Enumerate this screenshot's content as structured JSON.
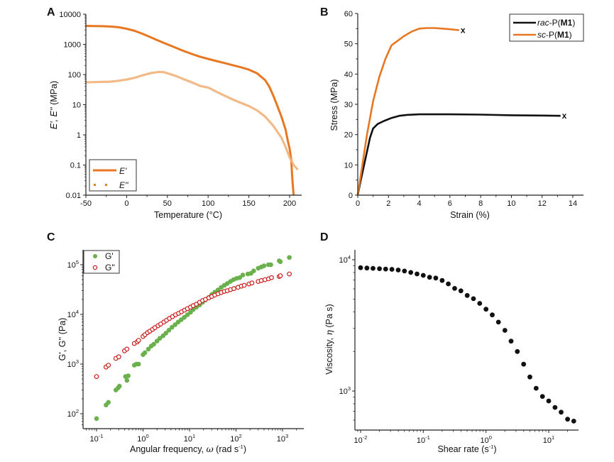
{
  "chart_data": [
    {
      "panel": "A",
      "type": "line",
      "xlabel": "Temperature (°C)",
      "ylabel": "E', E'' (MPa)",
      "xlim": [
        -50,
        215
      ],
      "ylim": [
        0.01,
        10000
      ],
      "yscale": "log",
      "xticks": [
        -50,
        0,
        50,
        100,
        150,
        200
      ],
      "xtick_labels": [
        "-50",
        "0",
        "50",
        "100",
        "150",
        "200"
      ],
      "yticks": [
        0.01,
        0.1,
        1,
        10,
        100,
        1000,
        10000
      ],
      "ytick_labels": [
        "0.01",
        "0.1",
        "1",
        "10",
        "100",
        "1000",
        "10000"
      ],
      "legend": "bottom-left",
      "series": [
        {
          "name": "E'",
          "color": "#e87722",
          "style": "solid",
          "x": [
            -50,
            -40,
            -30,
            -20,
            -10,
            0,
            10,
            20,
            30,
            40,
            50,
            60,
            70,
            80,
            90,
            100,
            110,
            120,
            130,
            140,
            150,
            160,
            170,
            175,
            180,
            185,
            190,
            195,
            198,
            200,
            202,
            203,
            204,
            205
          ],
          "y": [
            4100,
            4050,
            4000,
            3900,
            3700,
            3300,
            2800,
            2200,
            1700,
            1300,
            1000,
            780,
            600,
            480,
            390,
            330,
            280,
            240,
            205,
            175,
            145,
            110,
            65,
            40,
            20,
            9,
            4,
            1.5,
            0.6,
            0.35,
            0.15,
            0.05,
            0.02,
            0.01
          ]
        },
        {
          "name": "E''",
          "color": "#f2b27a",
          "style": "dotted",
          "x": [
            -50,
            -40,
            -30,
            -20,
            -10,
            0,
            10,
            20,
            30,
            40,
            45,
            50,
            60,
            70,
            80,
            90,
            100,
            102,
            110,
            120,
            130,
            140,
            150,
            160,
            170,
            180,
            190,
            195,
            200,
            205,
            210
          ],
          "y": [
            55,
            56,
            57,
            58,
            62,
            68,
            78,
            95,
            112,
            122,
            120,
            110,
            90,
            70,
            55,
            42,
            37,
            35,
            27,
            20,
            15,
            11.5,
            9,
            6.5,
            4,
            2,
            0.8,
            0.4,
            0.18,
            0.1,
            0.07
          ]
        }
      ]
    },
    {
      "panel": "B",
      "type": "line",
      "xlabel": "Strain (%)",
      "ylabel": "Stress (MPa)",
      "xlim": [
        0,
        15
      ],
      "ylim": [
        0,
        60
      ],
      "xticks": [
        0,
        2,
        4,
        6,
        8,
        10,
        12,
        14
      ],
      "xtick_labels": [
        "0",
        "2",
        "4",
        "6",
        "8",
        "10",
        "12",
        "14"
      ],
      "yticks": [
        0,
        10,
        20,
        30,
        40,
        50,
        60
      ],
      "ytick_labels": [
        "0",
        "10",
        "20",
        "30",
        "40",
        "50",
        "60"
      ],
      "legend": "top-right",
      "series": [
        {
          "name_prefix": "rac",
          "name_mid": "-P(",
          "name_bold": "M1",
          "name_suffix": ")",
          "color": "#111111",
          "x": [
            0,
            0.2,
            0.5,
            0.8,
            1.0,
            1.3,
            1.7,
            2.2,
            2.7,
            3.2,
            4.0,
            5.0,
            6.0,
            8.0,
            10.0,
            12.0,
            13.2
          ],
          "y": [
            0,
            5,
            12,
            19,
            22,
            23.5,
            24.5,
            25.5,
            26.2,
            26.5,
            26.7,
            26.7,
            26.7,
            26.6,
            26.4,
            26.3,
            26.2
          ],
          "break_marker": "x"
        },
        {
          "name_prefix": "sc",
          "name_mid": "-P(",
          "name_bold": "M1",
          "name_suffix": ")",
          "color": "#e87722",
          "x": [
            0,
            0.3,
            0.6,
            1.0,
            1.4,
            1.8,
            2.2,
            2.6,
            3.0,
            3.5,
            4.0,
            4.5,
            5.0,
            5.5,
            6.0,
            6.6
          ],
          "y": [
            0,
            10,
            20,
            31,
            39,
            45,
            49.5,
            51,
            52.5,
            54,
            55,
            55.2,
            55.2,
            55,
            54.8,
            54.5
          ],
          "break_marker": "x"
        }
      ]
    },
    {
      "panel": "C",
      "type": "scatter",
      "xlabel_main": "Angular frequency, ",
      "xlabel_symbol": "ω",
      "xlabel_unit": " (rad s",
      "xlabel_unit_sup": "-1",
      "xlabel_unit_end": ")",
      "ylabel": "G', G'' (Pa)",
      "xscale": "log",
      "yscale": "log",
      "xlim": [
        0.05,
        3000
      ],
      "ylim": [
        50,
        200000
      ],
      "xticks": [
        0.1,
        1,
        10,
        100,
        1000
      ],
      "xtick_labels": [
        {
          "base": "10",
          "exp": "-1"
        },
        {
          "base": "10",
          "exp": "0"
        },
        {
          "base": "10",
          "exp": "1"
        },
        {
          "base": "10",
          "exp": "2"
        },
        {
          "base": "10",
          "exp": "3"
        }
      ],
      "yticks": [
        100,
        1000,
        10000,
        100000
      ],
      "ytick_labels": [
        {
          "base": "10",
          "exp": "2"
        },
        {
          "base": "10",
          "exp": "3"
        },
        {
          "base": "10",
          "exp": "4"
        },
        {
          "base": "10",
          "exp": "5"
        }
      ],
      "legend": "top-left",
      "series": [
        {
          "name": "G'",
          "marker": "filled-circle",
          "color": "#6ab04c",
          "x": [
            0.1,
            0.16,
            0.18,
            0.26,
            0.29,
            0.31,
            0.42,
            0.45,
            0.48,
            0.65,
            0.72,
            0.8,
            1.0,
            1.1,
            1.3,
            1.5,
            1.7,
            2.0,
            2.3,
            2.7,
            3.1,
            3.6,
            4.2,
            4.9,
            5.7,
            6.6,
            7.7,
            9.0,
            10.5,
            12,
            14,
            16.5,
            19,
            22,
            26,
            30,
            35,
            41,
            48,
            56,
            65,
            76,
            88,
            103,
            120,
            140,
            180,
            210,
            240,
            300,
            350,
            400,
            500,
            560,
            850,
            900,
            1400
          ],
          "y": [
            80,
            150,
            170,
            300,
            330,
            360,
            560,
            470,
            580,
            950,
            1000,
            1000,
            1550,
            1700,
            2000,
            2300,
            2500,
            2900,
            3300,
            3700,
            4200,
            4800,
            5500,
            6200,
            7000,
            7800,
            8700,
            9800,
            11000,
            12500,
            14000,
            15500,
            17500,
            19500,
            22000,
            25000,
            28000,
            31000,
            35000,
            38500,
            42000,
            46000,
            50000,
            53000,
            55000,
            62000,
            65000,
            67000,
            75000,
            85000,
            90000,
            95000,
            100000,
            100000,
            120000,
            115000,
            140000
          ]
        },
        {
          "name": "G''",
          "marker": "open-circle",
          "color": "#cc1f1f",
          "x": [
            0.1,
            0.16,
            0.18,
            0.26,
            0.3,
            0.4,
            0.45,
            0.65,
            0.75,
            0.8,
            1.0,
            1.1,
            1.25,
            1.4,
            1.6,
            1.8,
            2.1,
            2.4,
            2.8,
            3.2,
            3.7,
            4.3,
            5.0,
            5.8,
            6.7,
            7.8,
            9.0,
            10.5,
            12,
            14,
            16.5,
            19,
            22,
            26,
            30,
            35,
            41,
            48,
            56,
            65,
            76,
            90,
            110,
            130,
            150,
            190,
            220,
            300,
            350,
            420,
            500,
            580,
            850,
            900,
            1400
          ],
          "y": [
            560,
            870,
            950,
            1300,
            1400,
            1850,
            2000,
            2600,
            2800,
            3000,
            3600,
            3900,
            4300,
            4600,
            5000,
            5400,
            5900,
            6400,
            7000,
            7600,
            8300,
            9000,
            9800,
            10500,
            11300,
            12200,
            13000,
            14000,
            15000,
            16000,
            17500,
            19000,
            20000,
            21500,
            23000,
            24500,
            26000,
            27500,
            29000,
            30000,
            31500,
            33000,
            35000,
            37000,
            38500,
            41000,
            43000,
            46000,
            48000,
            50000,
            52000,
            55000,
            58000,
            60000,
            65000
          ]
        }
      ]
    },
    {
      "panel": "D",
      "type": "scatter",
      "xlabel_main": "Shear rate (s",
      "xlabel_sup": "-1",
      "xlabel_end": ")",
      "ylabel_main": "Viscosity, ",
      "ylabel_symbol": "η",
      "ylabel_unit": " (Pa s)",
      "xscale": "log",
      "yscale": "log",
      "xlim": [
        0.008,
        30
      ],
      "ylim": [
        550,
        12500
      ],
      "xticks": [
        0.01,
        0.1,
        1,
        10
      ],
      "xtick_labels": [
        {
          "base": "10",
          "exp": "-2"
        },
        {
          "base": "10",
          "exp": "-1"
        },
        {
          "base": "10",
          "exp": "0"
        },
        {
          "base": "10",
          "exp": "1"
        }
      ],
      "yticks": [
        1000,
        10000
      ],
      "ytick_labels": [
        {
          "base": "10",
          "exp": "3"
        },
        {
          "base": "10",
          "exp": "4"
        }
      ],
      "series": [
        {
          "name": "viscosity",
          "marker": "filled-circle",
          "color": "#111111",
          "x": [
            0.01,
            0.0126,
            0.0158,
            0.02,
            0.0251,
            0.0316,
            0.0398,
            0.0501,
            0.0631,
            0.0794,
            0.1,
            0.126,
            0.158,
            0.2,
            0.251,
            0.316,
            0.398,
            0.501,
            0.631,
            0.794,
            1.0,
            1.26,
            1.58,
            2.0,
            2.51,
            3.16,
            3.98,
            5.01,
            6.31,
            7.94,
            10.0,
            12.6,
            15.8,
            20.0,
            25.1
          ],
          "y": [
            8700,
            8650,
            8600,
            8550,
            8500,
            8450,
            8350,
            8200,
            8000,
            7800,
            7600,
            7350,
            7250,
            6950,
            6550,
            6050,
            5800,
            5350,
            5050,
            4650,
            4200,
            3800,
            3350,
            2900,
            2400,
            2000,
            1600,
            1280,
            1050,
            910,
            840,
            750,
            690,
            610,
            590
          ]
        }
      ]
    }
  ]
}
